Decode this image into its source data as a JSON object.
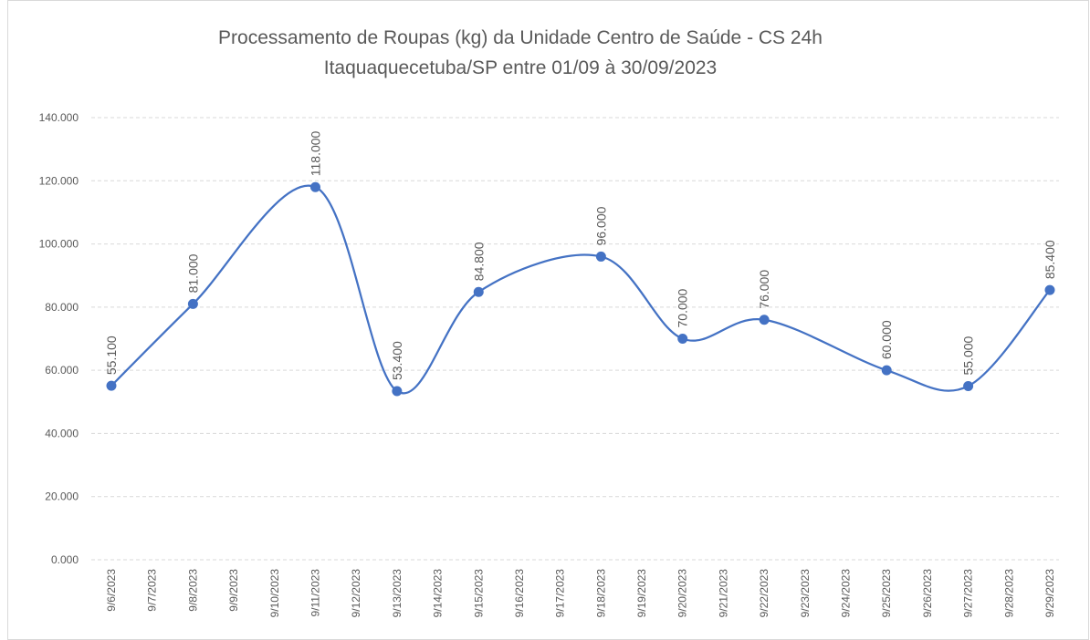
{
  "chart_data": {
    "type": "line",
    "title": "Processamento de Roupas (kg) da Unidade Centro de Saúde - CS 24h",
    "subtitle": "Itaquaquecetuba/SP entre 01/09 à 30/09/2023",
    "x": [
      "9/6/2023",
      "9/8/2023",
      "9/11/2023",
      "9/13/2023",
      "9/15/2023",
      "9/18/2023",
      "9/20/2023",
      "9/22/2023",
      "9/25/2023",
      "9/27/2023",
      "9/29/2023"
    ],
    "values": [
      55100,
      81000,
      118000,
      53400,
      84800,
      96000,
      70000,
      76000,
      60000,
      55000,
      85400
    ],
    "value_labels": [
      "55.100",
      "81.000",
      "118.000",
      "53.400",
      "84.800",
      "96.000",
      "70.000",
      "76.000",
      "60.000",
      "55.000",
      "85.400"
    ],
    "xticks": [
      "9/6/2023",
      "9/7/2023",
      "9/8/2023",
      "9/9/2023",
      "9/10/2023",
      "9/11/2023",
      "9/12/2023",
      "9/13/2023",
      "9/14/2023",
      "9/15/2023",
      "9/16/2023",
      "9/17/2023",
      "9/18/2023",
      "9/19/2023",
      "9/20/2023",
      "9/21/2023",
      "9/22/2023",
      "9/23/2023",
      "9/24/2023",
      "9/25/2023",
      "9/26/2023",
      "9/27/2023",
      "9/28/2023",
      "9/29/2023"
    ],
    "ylim": [
      0,
      140000
    ],
    "yticks": [
      {
        "value": 0,
        "label": "0.000"
      },
      {
        "value": 20000,
        "label": "20.000"
      },
      {
        "value": 40000,
        "label": "40.000"
      },
      {
        "value": 60000,
        "label": "60.000"
      },
      {
        "value": 80000,
        "label": "80.000"
      },
      {
        "value": 100000,
        "label": "100.000"
      },
      {
        "value": 120000,
        "label": "120.000"
      },
      {
        "value": 140000,
        "label": "140.000"
      }
    ],
    "color": "#4472c4",
    "grid": true,
    "smooth": true
  }
}
